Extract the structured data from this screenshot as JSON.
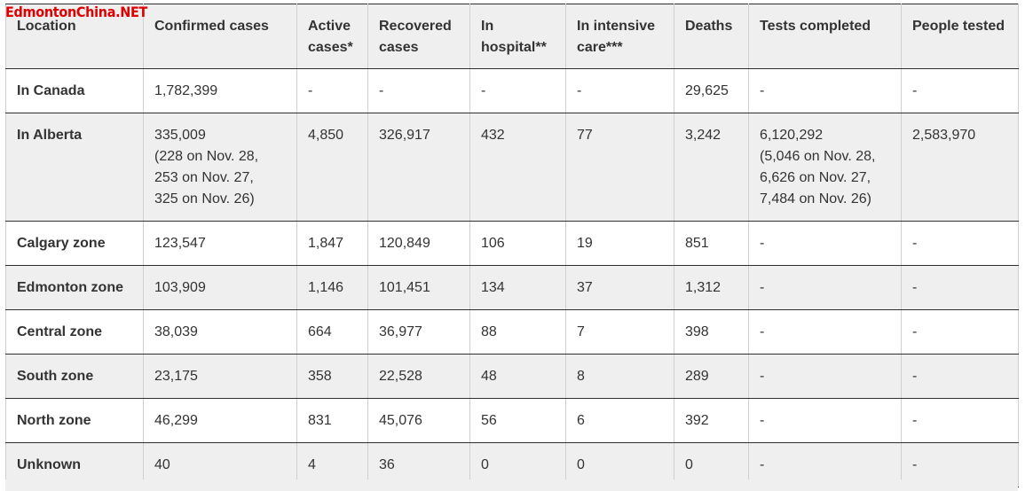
{
  "watermark": "EdmontonChina.NET",
  "headers": [
    "Location",
    "Confirmed cases",
    "Active cases*",
    "Recovered cases",
    "In hospital**",
    "In intensive care***",
    "Deaths",
    "Tests completed",
    "People tested"
  ],
  "rows": [
    {
      "name": "in-canada",
      "cells": [
        "In Canada",
        "1,782,399",
        "-",
        "-",
        "-",
        "-",
        "29,625",
        "-",
        "-"
      ]
    },
    {
      "name": "in-alberta",
      "cells": [
        "In Alberta",
        "335,009\n(228 on Nov. 28,\n253 on Nov. 27,\n325 on Nov. 26)",
        "4,850",
        "326,917",
        "432",
        "77",
        "3,242",
        "6,120,292\n(5,046 on Nov. 28,\n6,626 on Nov. 27,\n7,484 on Nov. 26)",
        "2,583,970"
      ]
    },
    {
      "name": "calgary-zone",
      "cells": [
        "Calgary zone",
        "123,547",
        "1,847",
        "120,849",
        "106",
        "19",
        "851",
        "-",
        "-"
      ]
    },
    {
      "name": "edmonton-zone",
      "cells": [
        "Edmonton zone",
        "103,909",
        "1,146",
        "101,451",
        "134",
        "37",
        "1,312",
        "-",
        "-"
      ]
    },
    {
      "name": "central-zone",
      "cells": [
        "Central zone",
        "38,039",
        "664",
        "36,977",
        "88",
        "7",
        "398",
        "-",
        "-"
      ]
    },
    {
      "name": "south-zone",
      "cells": [
        "South zone",
        "23,175",
        "358",
        "22,528",
        "48",
        "8",
        "289",
        "-",
        "-"
      ]
    },
    {
      "name": "north-zone",
      "cells": [
        "North zone",
        "46,299",
        "831",
        "45,076",
        "56",
        "6",
        "392",
        "-",
        "-"
      ]
    },
    {
      "name": "unknown",
      "cells": [
        "Unknown",
        "40",
        "4",
        "36",
        "0",
        "0",
        "0",
        "-",
        "-"
      ]
    }
  ],
  "colors": {
    "shade": "#efefef",
    "watermark": "#e00000",
    "text": "#333333"
  }
}
